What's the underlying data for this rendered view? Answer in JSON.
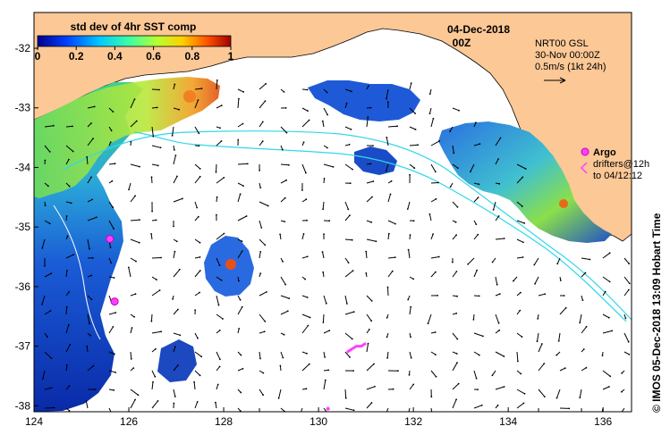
{
  "colorbar": {
    "title": "std dev of 4hr SST comp",
    "ticks": [
      "0",
      "0.2",
      "0.4",
      "0.6",
      "0.8",
      "1"
    ],
    "colors": [
      "#00008c",
      "#0040ff",
      "#00c8ff",
      "#40ffa0",
      "#b8ff30",
      "#ffd000",
      "#ff5000",
      "#a00000"
    ]
  },
  "date": "04-Dec-2018",
  "time": "00Z",
  "gsl": {
    "line1": "NRT00 GSL",
    "line2": "30-Nov 00:00Z",
    "line3": "0.5m/s (1kt 24h)"
  },
  "legend": {
    "argo": "Argo",
    "drifters_line1": "drifters@12h",
    "drifters_line2": "to 04/12:12"
  },
  "credit": "© IMOS 05-Dec-2018 13:09 Hobart Time",
  "y_ticks": [
    "-32",
    "-33",
    "-34",
    "-35",
    "-36",
    "-37",
    "-38"
  ],
  "x_ticks": [
    "124",
    "126",
    "128",
    "130",
    "132",
    "134",
    "136"
  ],
  "map_data": {
    "lon_range": [
      124,
      136.6
    ],
    "lat_range": [
      -38.1,
      -31.4
    ],
    "land_color": "#fcc896",
    "argo_floats": [
      {
        "lon": 125.6,
        "lat": -35.2
      },
      {
        "lon": 125.7,
        "lat": -36.25
      }
    ],
    "drifter_track": [
      [
        130.6,
        -37.1
      ],
      [
        130.7,
        -37.05
      ],
      [
        130.8,
        -37.0
      ],
      [
        130.9,
        -37.0
      ],
      [
        131.0,
        -36.95
      ]
    ]
  }
}
